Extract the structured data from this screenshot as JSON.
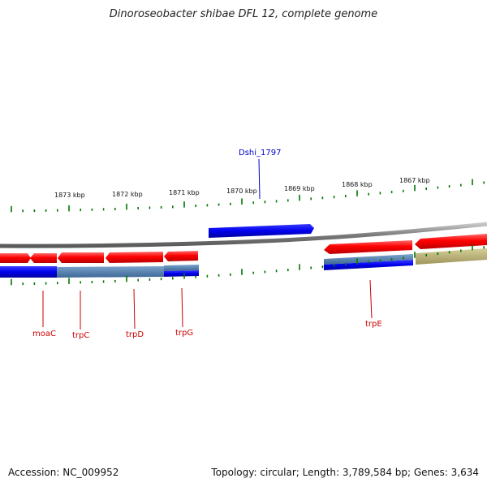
{
  "title": "Dinoroseobacter shibae DFL 12, complete genome",
  "footer": {
    "accession": "Accession: NC_009952",
    "summary": "Topology: circular; Length: 3,789,584 bp; Genes: 3,634"
  },
  "scale": {
    "unit": "kbp",
    "ticks": [
      "1873 kbp",
      "1872 kbp",
      "1871 kbp",
      "1870 kbp",
      "1869 kbp",
      "1868 kbp",
      "1867 kbp"
    ]
  },
  "genes": [
    {
      "label": "Dshi_1797",
      "color": "#0000cc"
    },
    {
      "label": "moaC",
      "color": "#cc0000"
    },
    {
      "label": "trpC",
      "color": "#cc0000"
    },
    {
      "label": "trpD",
      "color": "#cc0000"
    },
    {
      "label": "trpG",
      "color": "#cc0000"
    },
    {
      "label": "trpE",
      "color": "#cc0000"
    }
  ],
  "colors": {
    "forward_gene": "#0000ee",
    "reverse_gene": "#ee0000",
    "backbone": "#808080",
    "tick": "#007700",
    "feature_steel": "#4f7fb0",
    "feature_olive": "#b8b074"
  }
}
